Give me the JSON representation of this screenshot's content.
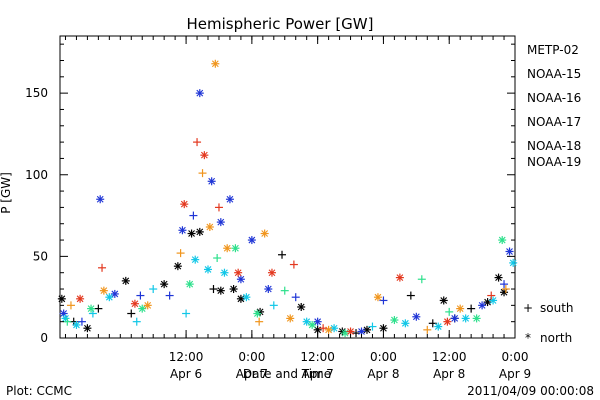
{
  "chart_data": {
    "type": "scatter",
    "title": "Hemispheric Power [GW]",
    "xlabel": "Date and Time",
    "ylabel": "P [GW]",
    "footer_left": "Plot: CCMC",
    "footer_right": "2011/04/09 00:00:08",
    "xlim": [
      "2011-04-05 13:00",
      "2011-04-09 00:00"
    ],
    "ylim": [
      0,
      185
    ],
    "y_ticks": [
      0,
      50,
      100,
      150
    ],
    "x_ticks": [
      {
        "value": "2011-04-06 12:00",
        "labels": [
          "12:00",
          "Apr 6"
        ]
      },
      {
        "value": "2011-04-07 00:00",
        "labels": [
          "0:00",
          "Apr 7"
        ]
      },
      {
        "value": "2011-04-07 12:00",
        "labels": [
          "12:00",
          "Apr 7"
        ]
      },
      {
        "value": "2011-04-08 00:00",
        "labels": [
          "0:00",
          "Apr 8"
        ]
      },
      {
        "value": "2011-04-08 12:00",
        "labels": [
          "12:00",
          "Apr 8"
        ]
      },
      {
        "value": "2011-04-09 00:00",
        "labels": [
          "0:00",
          "Apr 9"
        ]
      }
    ],
    "legend_position": "right",
    "legend": [
      {
        "name": "METP-02",
        "color": "#000000"
      },
      {
        "name": "NOAA-15",
        "color": "#1f35d6"
      },
      {
        "name": "NOAA-16",
        "color": "#11c7e7"
      },
      {
        "name": "NOAA-17",
        "color": "#2de08c"
      },
      {
        "name": "NOAA-18",
        "color": "#f0951d"
      },
      {
        "name": "NOAA-19",
        "color": "#e3381f"
      }
    ],
    "marker_legend": [
      {
        "symbol": "+",
        "label": "south"
      },
      {
        "symbol": "*",
        "label": "north"
      }
    ],
    "series": [
      {
        "name": "METP-02",
        "color": "#000000",
        "points": [
          {
            "x": "2011-04-05 13:20",
            "y": 24,
            "marker": "star"
          },
          {
            "x": "2011-04-05 15:30",
            "y": 10,
            "marker": "plus"
          },
          {
            "x": "2011-04-05 18:00",
            "y": 6,
            "marker": "star"
          },
          {
            "x": "2011-04-05 20:00",
            "y": 18,
            "marker": "plus"
          },
          {
            "x": "2011-04-06 01:00",
            "y": 35,
            "marker": "star"
          },
          {
            "x": "2011-04-06 02:00",
            "y": 15,
            "marker": "plus"
          },
          {
            "x": "2011-04-06 08:00",
            "y": 33,
            "marker": "star"
          },
          {
            "x": "2011-04-06 10:30",
            "y": 44,
            "marker": "star"
          },
          {
            "x": "2011-04-06 13:00",
            "y": 64,
            "marker": "star"
          },
          {
            "x": "2011-04-06 14:30",
            "y": 65,
            "marker": "star"
          },
          {
            "x": "2011-04-06 17:00",
            "y": 30,
            "marker": "plus"
          },
          {
            "x": "2011-04-06 18:20",
            "y": 29,
            "marker": "star"
          },
          {
            "x": "2011-04-06 20:40",
            "y": 30,
            "marker": "star"
          },
          {
            "x": "2011-04-06 22:00",
            "y": 24,
            "marker": "star"
          },
          {
            "x": "2011-04-07 01:30",
            "y": 16,
            "marker": "star"
          },
          {
            "x": "2011-04-07 05:30",
            "y": 51,
            "marker": "plus"
          },
          {
            "x": "2011-04-07 09:00",
            "y": 19,
            "marker": "star"
          },
          {
            "x": "2011-04-07 12:00",
            "y": 5,
            "marker": "star"
          },
          {
            "x": "2011-04-07 16:30",
            "y": 4,
            "marker": "star"
          },
          {
            "x": "2011-04-07 19:00",
            "y": 3,
            "marker": "plus"
          },
          {
            "x": "2011-04-07 21:00",
            "y": 5,
            "marker": "star"
          },
          {
            "x": "2011-04-08 00:00",
            "y": 6,
            "marker": "star"
          },
          {
            "x": "2011-04-08 05:00",
            "y": 26,
            "marker": "plus"
          },
          {
            "x": "2011-04-08 09:00",
            "y": 9,
            "marker": "plus"
          },
          {
            "x": "2011-04-08 11:00",
            "y": 23,
            "marker": "star"
          },
          {
            "x": "2011-04-08 13:00",
            "y": 12,
            "marker": "plus"
          },
          {
            "x": "2011-04-08 16:00",
            "y": 18,
            "marker": "plus"
          },
          {
            "x": "2011-04-08 19:00",
            "y": 22,
            "marker": "star"
          },
          {
            "x": "2011-04-08 21:00",
            "y": 37,
            "marker": "star"
          },
          {
            "x": "2011-04-08 22:00",
            "y": 28,
            "marker": "star"
          }
        ]
      },
      {
        "name": "NOAA-15",
        "color": "#1f35d6",
        "points": [
          {
            "x": "2011-04-05 13:40",
            "y": 15,
            "marker": "star"
          },
          {
            "x": "2011-04-05 17:00",
            "y": 10,
            "marker": "plus"
          },
          {
            "x": "2011-04-05 20:20",
            "y": 85,
            "marker": "star"
          },
          {
            "x": "2011-04-05 23:00",
            "y": 27,
            "marker": "star"
          },
          {
            "x": "2011-04-06 03:40",
            "y": 26,
            "marker": "plus"
          },
          {
            "x": "2011-04-06 09:00",
            "y": 26,
            "marker": "plus"
          },
          {
            "x": "2011-04-06 11:20",
            "y": 66,
            "marker": "star"
          },
          {
            "x": "2011-04-06 13:20",
            "y": 75,
            "marker": "plus"
          },
          {
            "x": "2011-04-06 14:30",
            "y": 150,
            "marker": "star"
          },
          {
            "x": "2011-04-06 16:40",
            "y": 96,
            "marker": "star"
          },
          {
            "x": "2011-04-06 18:20",
            "y": 71,
            "marker": "star"
          },
          {
            "x": "2011-04-06 20:00",
            "y": 85,
            "marker": "star"
          },
          {
            "x": "2011-04-06 22:00",
            "y": 36,
            "marker": "star"
          },
          {
            "x": "2011-04-07 00:00",
            "y": 60,
            "marker": "star"
          },
          {
            "x": "2011-04-07 03:00",
            "y": 30,
            "marker": "star"
          },
          {
            "x": "2011-04-07 08:00",
            "y": 25,
            "marker": "plus"
          },
          {
            "x": "2011-04-07 12:00",
            "y": 10,
            "marker": "star"
          },
          {
            "x": "2011-04-07 20:00",
            "y": 4,
            "marker": "star"
          },
          {
            "x": "2011-04-08 00:00",
            "y": 23,
            "marker": "plus"
          },
          {
            "x": "2011-04-08 06:00",
            "y": 13,
            "marker": "star"
          },
          {
            "x": "2011-04-08 13:00",
            "y": 12,
            "marker": "star"
          },
          {
            "x": "2011-04-08 18:00",
            "y": 20,
            "marker": "star"
          },
          {
            "x": "2011-04-08 22:00",
            "y": 33,
            "marker": "plus"
          },
          {
            "x": "2011-04-08 23:00",
            "y": 53,
            "marker": "star"
          }
        ]
      },
      {
        "name": "NOAA-16",
        "color": "#11c7e7",
        "points": [
          {
            "x": "2011-04-05 14:00",
            "y": 12,
            "marker": "star"
          },
          {
            "x": "2011-04-05 16:00",
            "y": 8,
            "marker": "star"
          },
          {
            "x": "2011-04-05 19:00",
            "y": 15,
            "marker": "plus"
          },
          {
            "x": "2011-04-05 22:00",
            "y": 25,
            "marker": "star"
          },
          {
            "x": "2011-04-06 03:00",
            "y": 10,
            "marker": "plus"
          },
          {
            "x": "2011-04-06 06:00",
            "y": 30,
            "marker": "plus"
          },
          {
            "x": "2011-04-06 12:00",
            "y": 15,
            "marker": "plus"
          },
          {
            "x": "2011-04-06 13:40",
            "y": 48,
            "marker": "star"
          },
          {
            "x": "2011-04-06 16:00",
            "y": 42,
            "marker": "star"
          },
          {
            "x": "2011-04-06 19:00",
            "y": 40,
            "marker": "star"
          },
          {
            "x": "2011-04-06 23:00",
            "y": 25,
            "marker": "star"
          },
          {
            "x": "2011-04-07 04:00",
            "y": 20,
            "marker": "plus"
          },
          {
            "x": "2011-04-07 10:00",
            "y": 10,
            "marker": "star"
          },
          {
            "x": "2011-04-07 15:00",
            "y": 6,
            "marker": "star"
          },
          {
            "x": "2011-04-07 22:00",
            "y": 7,
            "marker": "plus"
          },
          {
            "x": "2011-04-08 04:00",
            "y": 9,
            "marker": "star"
          },
          {
            "x": "2011-04-08 10:00",
            "y": 7,
            "marker": "star"
          },
          {
            "x": "2011-04-08 15:00",
            "y": 12,
            "marker": "star"
          },
          {
            "x": "2011-04-08 20:00",
            "y": 23,
            "marker": "star"
          },
          {
            "x": "2011-04-08 23:40",
            "y": 46,
            "marker": "star"
          }
        ]
      },
      {
        "name": "NOAA-17",
        "color": "#2de08c",
        "points": [
          {
            "x": "2011-04-05 14:20",
            "y": 10,
            "marker": "plus"
          },
          {
            "x": "2011-04-05 18:40",
            "y": 18,
            "marker": "star"
          },
          {
            "x": "2011-04-06 04:00",
            "y": 18,
            "marker": "star"
          },
          {
            "x": "2011-04-06 12:40",
            "y": 33,
            "marker": "star"
          },
          {
            "x": "2011-04-06 17:40",
            "y": 49,
            "marker": "plus"
          },
          {
            "x": "2011-04-06 21:00",
            "y": 55,
            "marker": "star"
          },
          {
            "x": "2011-04-07 01:00",
            "y": 15,
            "marker": "star"
          },
          {
            "x": "2011-04-07 06:00",
            "y": 29,
            "marker": "plus"
          },
          {
            "x": "2011-04-07 11:00",
            "y": 8,
            "marker": "star"
          },
          {
            "x": "2011-04-07 17:00",
            "y": 3,
            "marker": "star"
          },
          {
            "x": "2011-04-08 02:00",
            "y": 11,
            "marker": "star"
          },
          {
            "x": "2011-04-08 07:00",
            "y": 36,
            "marker": "plus"
          },
          {
            "x": "2011-04-08 12:00",
            "y": 16,
            "marker": "plus"
          },
          {
            "x": "2011-04-08 17:00",
            "y": 12,
            "marker": "star"
          },
          {
            "x": "2011-04-08 21:40",
            "y": 60,
            "marker": "star"
          }
        ]
      },
      {
        "name": "NOAA-18",
        "color": "#f0951d",
        "points": [
          {
            "x": "2011-04-05 15:00",
            "y": 20,
            "marker": "plus"
          },
          {
            "x": "2011-04-05 21:00",
            "y": 29,
            "marker": "star"
          },
          {
            "x": "2011-04-06 05:00",
            "y": 20,
            "marker": "star"
          },
          {
            "x": "2011-04-06 11:00",
            "y": 52,
            "marker": "plus"
          },
          {
            "x": "2011-04-06 15:00",
            "y": 101,
            "marker": "plus"
          },
          {
            "x": "2011-04-06 16:20",
            "y": 68,
            "marker": "star"
          },
          {
            "x": "2011-04-06 17:20",
            "y": 168,
            "marker": "star"
          },
          {
            "x": "2011-04-06 19:30",
            "y": 55,
            "marker": "star"
          },
          {
            "x": "2011-04-07 01:20",
            "y": 10,
            "marker": "plus"
          },
          {
            "x": "2011-04-07 02:20",
            "y": 64,
            "marker": "star"
          },
          {
            "x": "2011-04-07 07:00",
            "y": 12,
            "marker": "star"
          },
          {
            "x": "2011-04-07 14:00",
            "y": 5,
            "marker": "star"
          },
          {
            "x": "2011-04-07 23:00",
            "y": 25,
            "marker": "star"
          },
          {
            "x": "2011-04-08 08:00",
            "y": 5,
            "marker": "plus"
          },
          {
            "x": "2011-04-08 14:00",
            "y": 18,
            "marker": "star"
          },
          {
            "x": "2011-04-08 22:20",
            "y": 30,
            "marker": "plus"
          }
        ]
      },
      {
        "name": "NOAA-19",
        "color": "#e3381f",
        "points": [
          {
            "x": "2011-04-05 16:40",
            "y": 24,
            "marker": "star"
          },
          {
            "x": "2011-04-05 20:40",
            "y": 43,
            "marker": "plus"
          },
          {
            "x": "2011-04-06 02:40",
            "y": 21,
            "marker": "star"
          },
          {
            "x": "2011-04-06 11:40",
            "y": 82,
            "marker": "star"
          },
          {
            "x": "2011-04-06 14:00",
            "y": 120,
            "marker": "plus"
          },
          {
            "x": "2011-04-06 15:20",
            "y": 112,
            "marker": "star"
          },
          {
            "x": "2011-04-06 18:00",
            "y": 80,
            "marker": "plus"
          },
          {
            "x": "2011-04-06 21:30",
            "y": 40,
            "marker": "star"
          },
          {
            "x": "2011-04-07 03:40",
            "y": 40,
            "marker": "star"
          },
          {
            "x": "2011-04-07 07:40",
            "y": 45,
            "marker": "plus"
          },
          {
            "x": "2011-04-07 13:00",
            "y": 6,
            "marker": "plus"
          },
          {
            "x": "2011-04-07 18:00",
            "y": 4,
            "marker": "star"
          },
          {
            "x": "2011-04-08 03:00",
            "y": 37,
            "marker": "star"
          },
          {
            "x": "2011-04-08 11:40",
            "y": 10,
            "marker": "star"
          },
          {
            "x": "2011-04-08 19:40",
            "y": 26,
            "marker": "plus"
          }
        ]
      }
    ]
  }
}
